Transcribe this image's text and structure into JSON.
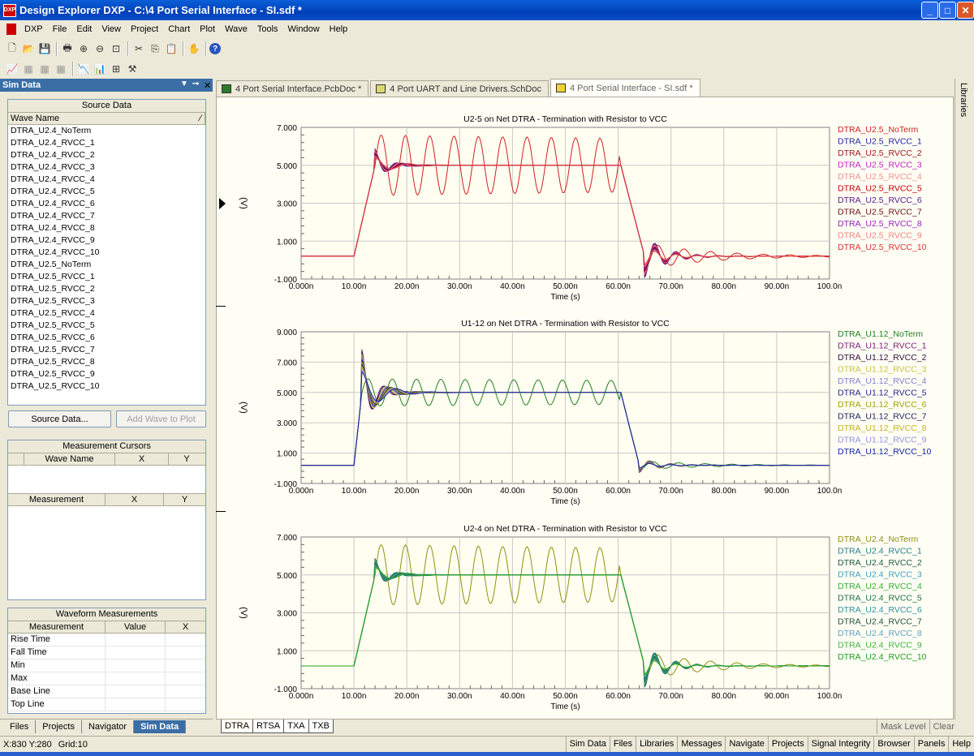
{
  "window": {
    "title": "Design Explorer DXP - C:\\4 Port Serial Interface - SI.sdf *",
    "app_icon": "DXP"
  },
  "menu": [
    "DXP",
    "File",
    "Edit",
    "View",
    "Project",
    "Chart",
    "Plot",
    "Wave",
    "Tools",
    "Window",
    "Help"
  ],
  "panel": {
    "title": "Sim Data",
    "source_data": {
      "header": "Source Data",
      "column": "Wave Name",
      "waves": [
        "DTRA_U2.4_NoTerm",
        "DTRA_U2.4_RVCC_1",
        "DTRA_U2.4_RVCC_2",
        "DTRA_U2.4_RVCC_3",
        "DTRA_U2.4_RVCC_4",
        "DTRA_U2.4_RVCC_5",
        "DTRA_U2.4_RVCC_6",
        "DTRA_U2.4_RVCC_7",
        "DTRA_U2.4_RVCC_8",
        "DTRA_U2.4_RVCC_9",
        "DTRA_U2.4_RVCC_10",
        "DTRA_U2.5_NoTerm",
        "DTRA_U2.5_RVCC_1",
        "DTRA_U2.5_RVCC_2",
        "DTRA_U2.5_RVCC_3",
        "DTRA_U2.5_RVCC_4",
        "DTRA_U2.5_RVCC_5",
        "DTRA_U2.5_RVCC_6",
        "DTRA_U2.5_RVCC_7",
        "DTRA_U2.5_RVCC_8",
        "DTRA_U2.5_RVCC_9",
        "DTRA_U2.5_RVCC_10"
      ]
    },
    "source_data_button": "Source Data...",
    "add_wave_button": "Add Wave to Plot",
    "cursors": {
      "header": "Measurement Cursors",
      "cols1": [
        "Wave Name",
        "X",
        "Y"
      ],
      "cols2": [
        "Measurement",
        "X",
        "Y"
      ]
    },
    "waveform_measurements": {
      "header": "Waveform Measurements",
      "cols": [
        "Measurement",
        "Value",
        "X"
      ],
      "rows": [
        "Rise Time",
        "Fall Time",
        "Min",
        "Max",
        "Base Line",
        "Top Line"
      ]
    },
    "tabs": [
      "Files",
      "Projects",
      "Navigator",
      "Sim Data"
    ]
  },
  "doc_tabs": [
    "4 Port Serial Interface.PcbDoc *",
    "4 Port UART and Line Drivers.SchDoc",
    "4 Port Serial Interface - SI.sdf *"
  ],
  "side_panel": "Libraries",
  "chart_data": [
    {
      "type": "line",
      "title": "U2-5 on Net DTRA - Termination with Resistor to VCC",
      "xlabel": "Time (s)",
      "ylabel": "(V)",
      "yticks": [
        "7.000",
        "5.000",
        "3.000",
        "1.000",
        "-1.000"
      ],
      "ylim": [
        -1,
        7
      ],
      "xticks": [
        "0.000n",
        "10.00n",
        "20.00n",
        "30.00n",
        "40.00n",
        "50.00n",
        "60.00n",
        "70.00n",
        "80.00n",
        "90.00n",
        "100.0n"
      ],
      "xlim": [
        0,
        100
      ],
      "legend": [
        "DTRA_U2.5_NoTerm",
        "DTRA_U2.5_RVCC_1",
        "DTRA_U2.5_RVCC_2",
        "DTRA_U2.5_RVCC_3",
        "DTRA_U2.5_RVCC_4",
        "DTRA_U2.5_RVCC_5",
        "DTRA_U2.5_RVCC_6",
        "DTRA_U2.5_RVCC_7",
        "DTRA_U2.5_RVCC_8",
        "DTRA_U2.5_RVCC_9",
        "DTRA_U2.5_RVCC_10"
      ],
      "colors": [
        "#d02020",
        "#2020a0",
        "#a01818",
        "#c020c0",
        "#f09090",
        "#c00000",
        "#5a1a8a",
        "#6a1010",
        "#9a20c0",
        "#f08080",
        "#e03030"
      ],
      "rise_start": 10,
      "rise_end": 14,
      "fall_start": 60.5,
      "fall_end": 65,
      "low": 0.2,
      "high": 5.0,
      "overshoot": 5.9,
      "undershoot": -1.0
    },
    {
      "type": "line",
      "title": "U1-12 on Net DTRA - Termination with Resistor to VCC",
      "xlabel": "Time (s)",
      "ylabel": "(V)",
      "yticks": [
        "9.000",
        "7.000",
        "5.000",
        "3.000",
        "1.000",
        "-1.000"
      ],
      "ylim": [
        -1,
        9
      ],
      "xticks": [
        "0.000n",
        "10.00n",
        "20.00n",
        "30.00n",
        "40.00n",
        "50.00n",
        "60.00n",
        "70.00n",
        "80.00n",
        "90.00n",
        "100.0n"
      ],
      "xlim": [
        0,
        100
      ],
      "legend": [
        "DTRA_U1.12_NoTerm",
        "DTRA_U1.12_RVCC_1",
        "DTRA_U1.12_RVCC_2",
        "DTRA_U1.12_RVCC_3",
        "DTRA_U1.12_RVCC_4",
        "DTRA_U1.12_RVCC_5",
        "DTRA_U1.12_RVCC_6",
        "DTRA_U1.12_RVCC_7",
        "DTRA_U1.12_RVCC_8",
        "DTRA_U1.12_RVCC_9",
        "DTRA_U1.12_RVCC_10"
      ],
      "colors": [
        "#208020",
        "#7a1a7a",
        "#301040",
        "#c8c040",
        "#8080d0",
        "#202090",
        "#a0a000",
        "#202060",
        "#c8b020",
        "#9090e0",
        "#1020a0"
      ],
      "rise_start": 10,
      "rise_end": 11.5,
      "fall_start": 60.5,
      "fall_end": 64,
      "low": 0.2,
      "high": 5.0,
      "overshoot": 8.0,
      "undershoot": -0.3
    },
    {
      "type": "line",
      "title": "U2-4 on Net DTRA - Termination with Resistor to VCC",
      "xlabel": "Time (s)",
      "ylabel": "(V)",
      "yticks": [
        "7.000",
        "5.000",
        "3.000",
        "1.000",
        "-1.000"
      ],
      "ylim": [
        -1,
        7
      ],
      "xticks": [
        "0.000n",
        "10.00n",
        "20.00n",
        "30.00n",
        "40.00n",
        "50.00n",
        "60.00n",
        "70.00n",
        "80.00n",
        "90.00n",
        "100.0n"
      ],
      "xlim": [
        0,
        100
      ],
      "legend": [
        "DTRA_U2.4_NoTerm",
        "DTRA_U2.4_RVCC_1",
        "DTRA_U2.4_RVCC_2",
        "DTRA_U2.4_RVCC_3",
        "DTRA_U2.4_RVCC_4",
        "DTRA_U2.4_RVCC_5",
        "DTRA_U2.4_RVCC_6",
        "DTRA_U2.4_RVCC_7",
        "DTRA_U2.4_RVCC_8",
        "DTRA_U2.4_RVCC_9",
        "DTRA_U2.4_RVCC_10"
      ],
      "colors": [
        "#909010",
        "#2a7a8a",
        "#1a5a3a",
        "#40a0c0",
        "#30b030",
        "#207040",
        "#3090a0",
        "#205030",
        "#60a0c0",
        "#40b040",
        "#20a020"
      ],
      "rise_start": 10,
      "rise_end": 14,
      "fall_start": 60.5,
      "fall_end": 65,
      "low": 0.2,
      "high": 5.0,
      "overshoot": 5.9,
      "undershoot": -1.0
    }
  ],
  "wave_tabs": [
    "DTRA",
    "RTSA",
    "TXA",
    "TXB"
  ],
  "wave_right": [
    "Mask Level",
    "Clear"
  ],
  "status": {
    "coords": "X:830 Y:280",
    "grid": "Grid:10"
  },
  "status_panels": [
    "Sim Data",
    "Files",
    "Libraries",
    "Messages",
    "Navigate",
    "Projects",
    "Signal Integrity",
    "Browser",
    "Panels",
    "Help"
  ]
}
